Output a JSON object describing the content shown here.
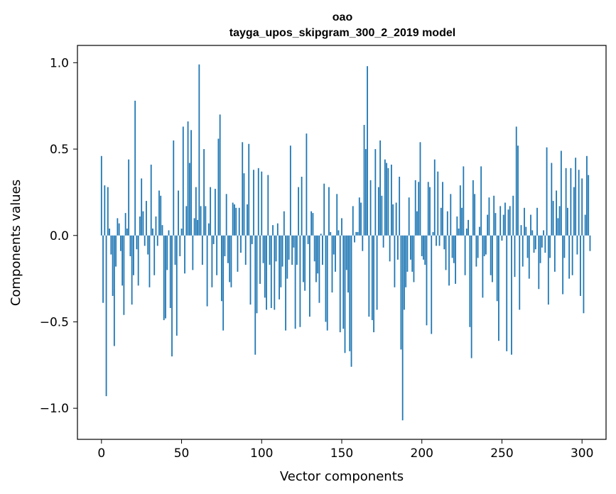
{
  "chart_data": {
    "type": "bar",
    "title": "oao",
    "subtitle": "tayga_upos_skipgram_300_2_2019 model",
    "xlabel": "Vector components",
    "ylabel": "Components values",
    "xlim": [
      -15,
      315
    ],
    "ylim": [
      -1.18,
      1.1
    ],
    "xticks": [
      0,
      50,
      100,
      150,
      200,
      250,
      300
    ],
    "yticks": [
      -1.0,
      -0.5,
      0.0,
      0.5,
      1.0
    ],
    "ytick_labels": [
      "−1.0",
      "−0.5",
      "0.0",
      "0.5",
      "1.0"
    ],
    "bar_color": "#1f77b4",
    "grid": false,
    "values": [
      0.46,
      -0.39,
      0.29,
      -0.93,
      0.28,
      0.04,
      -0.11,
      -0.35,
      -0.64,
      -0.18,
      0.1,
      0.07,
      -0.09,
      -0.29,
      -0.46,
      0.13,
      0.04,
      0.44,
      -0.12,
      -0.4,
      -0.23,
      0.78,
      -0.08,
      -0.29,
      0.11,
      0.33,
      0.14,
      -0.06,
      0.2,
      -0.11,
      -0.3,
      0.41,
      0.04,
      -0.23,
      0.11,
      -0.06,
      0.26,
      0.23,
      0.06,
      -0.49,
      -0.48,
      -0.2,
      0.03,
      -0.42,
      -0.7,
      0.55,
      -0.17,
      -0.58,
      0.26,
      -0.12,
      0.04,
      0.63,
      -0.22,
      0.17,
      0.66,
      0.42,
      0.61,
      -0.2,
      0.1,
      0.28,
      0.09,
      0.99,
      0.17,
      -0.17,
      0.5,
      0.17,
      -0.41,
      0.07,
      0.28,
      -0.3,
      -0.05,
      0.27,
      -0.23,
      0.56,
      0.7,
      -0.38,
      -0.55,
      -0.12,
      0.24,
      -0.16,
      -0.27,
      -0.3,
      0.19,
      0.18,
      0.16,
      -0.21,
      0.16,
      -0.1,
      0.54,
      0.36,
      -0.17,
      0.18,
      0.53,
      -0.4,
      -0.05,
      0.38,
      -0.69,
      -0.45,
      0.39,
      -0.28,
      0.37,
      -0.16,
      -0.36,
      -0.43,
      0.35,
      -0.17,
      -0.42,
      0.06,
      -0.43,
      -0.15,
      0.07,
      -0.37,
      -0.3,
      -0.18,
      0.14,
      -0.55,
      -0.25,
      -0.14,
      0.52,
      -0.17,
      -0.07,
      -0.54,
      -0.17,
      0.28,
      -0.53,
      0.34,
      -0.27,
      -0.32,
      0.59,
      -0.05,
      -0.47,
      0.14,
      0.13,
      -0.15,
      -0.27,
      -0.22,
      -0.39,
      0.01,
      -0.17,
      0.3,
      -0.5,
      -0.55,
      0.28,
      0.02,
      -0.33,
      -0.11,
      -0.21,
      0.24,
      0.03,
      -0.56,
      0.1,
      -0.54,
      -0.68,
      -0.2,
      -0.33,
      -0.67,
      -0.76,
      0.17,
      -0.04,
      0.02,
      0.02,
      0.22,
      0.19,
      -0.09,
      0.64,
      0.5,
      0.98,
      -0.47,
      0.32,
      -0.49,
      -0.56,
      0.5,
      -0.43,
      0.28,
      0.55,
      0.23,
      -0.07,
      0.44,
      0.42,
      0.39,
      -0.15,
      0.41,
      0.18,
      -0.3,
      0.19,
      -0.14,
      0.34,
      -0.66,
      -1.07,
      -0.43,
      -0.3,
      -0.21,
      0.22,
      -0.14,
      -0.21,
      -0.27,
      0.32,
      0.14,
      0.31,
      0.54,
      -0.12,
      -0.14,
      -0.17,
      -0.52,
      0.31,
      0.28,
      -0.57,
      0.02,
      0.44,
      -0.06,
      0.37,
      -0.06,
      0.16,
      0.31,
      -0.08,
      -0.2,
      0.14,
      -0.29,
      0.24,
      -0.13,
      -0.16,
      -0.28,
      0.11,
      0.04,
      0.29,
      0.16,
      0.4,
      -0.23,
      0.04,
      0.09,
      -0.53,
      -0.71,
      0.32,
      0.24,
      -0.18,
      -0.13,
      0.05,
      0.4,
      -0.36,
      -0.12,
      -0.11,
      0.12,
      0.22,
      -0.23,
      -0.27,
      0.23,
      0.13,
      -0.38,
      -0.61,
      0.17,
      -0.03,
      0.12,
      0.19,
      -0.67,
      0.15,
      0.17,
      -0.69,
      0.23,
      -0.24,
      0.63,
      0.52,
      -0.43,
      0.06,
      -0.18,
      0.16,
      0.05,
      -0.13,
      -0.25,
      0.12,
      0.03,
      -0.1,
      -0.08,
      0.16,
      -0.31,
      -0.16,
      -0.07,
      0.03,
      -0.1,
      0.51,
      -0.4,
      -0.13,
      0.42,
      0.2,
      -0.21,
      0.26,
      0.1,
      0.17,
      0.49,
      -0.34,
      -0.13,
      0.39,
      0.16,
      -0.25,
      0.39,
      -0.23,
      0.28,
      0.45,
      -0.11,
      0.38,
      -0.35,
      0.33,
      -0.45,
      0.12,
      0.46,
      0.35,
      -0.09
    ]
  }
}
